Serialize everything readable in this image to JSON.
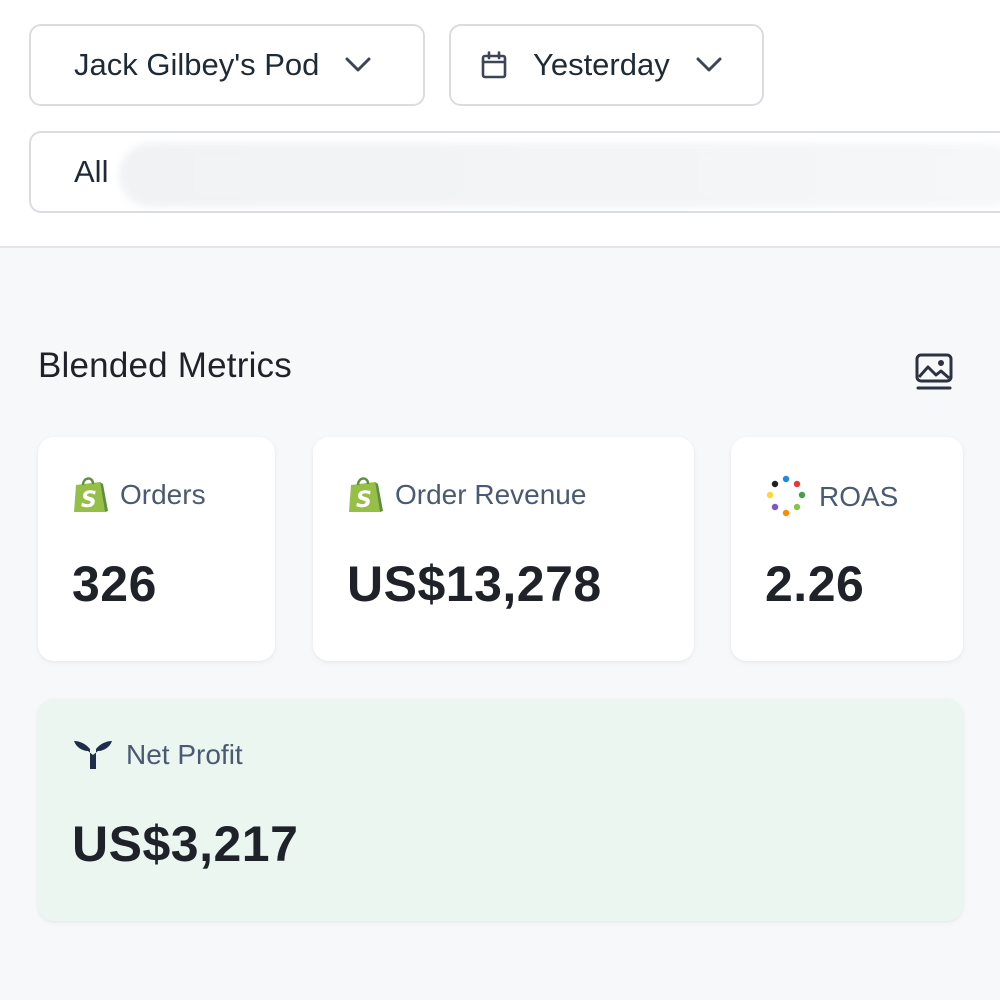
{
  "filters": {
    "pod": "Jack Gilbey's Pod",
    "date_range": "Yesterday",
    "segment": "All"
  },
  "section": {
    "title": "Blended Metrics"
  },
  "metrics": {
    "orders": {
      "label": "Orders",
      "value": "326",
      "icon": "shopify-icon"
    },
    "order_revenue": {
      "label": "Order Revenue",
      "value": "US$13,278",
      "icon": "shopify-icon"
    },
    "roas": {
      "label": "ROAS",
      "value": "2.26",
      "icon": "roas-dots-icon"
    },
    "net_profit": {
      "label": "Net Profit",
      "value": "US$3,217",
      "icon": "triple-whale-icon"
    }
  },
  "colors": {
    "shopify_green": "#95bf47",
    "net_profit_bg": "#ebf6f1",
    "whale_navy": "#1d2d4a"
  }
}
